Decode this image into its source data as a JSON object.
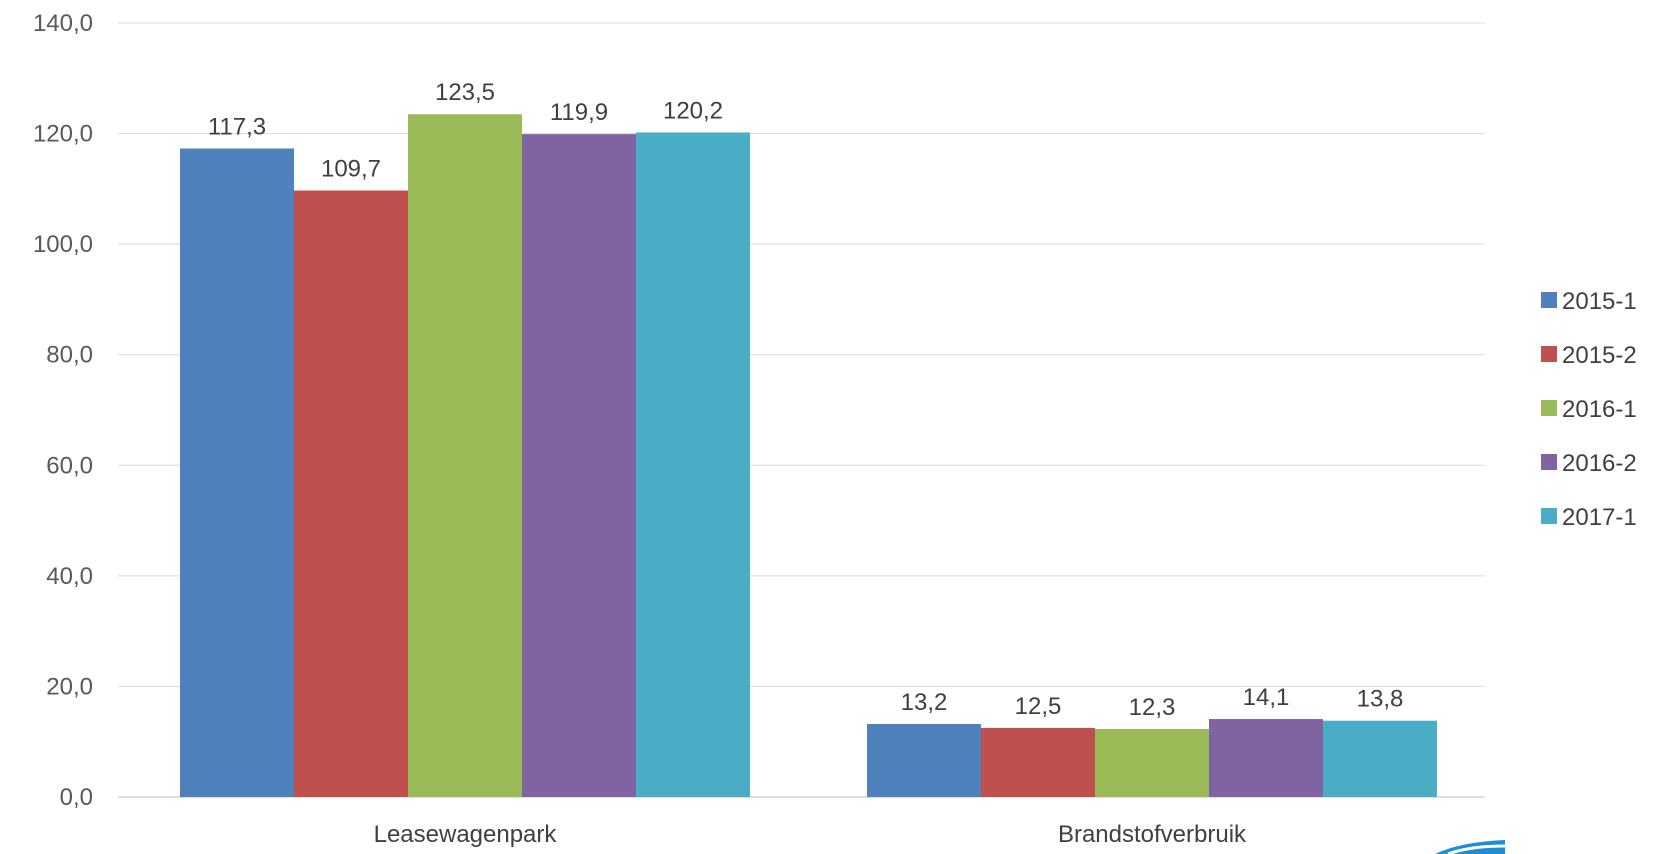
{
  "chart_data": {
    "type": "bar",
    "categories": [
      "Leasewagenpark",
      "Brandstofverbruik"
    ],
    "series": [
      {
        "name": "2015-1",
        "color": "#4F81BD",
        "values": [
          117.3,
          13.2
        ],
        "labels": [
          "117,3",
          "13,2"
        ]
      },
      {
        "name": "2015-2",
        "color": "#C0504D",
        "values": [
          109.7,
          12.5
        ],
        "labels": [
          "109,7",
          "12,5"
        ]
      },
      {
        "name": "2016-1",
        "color": "#9BBB59",
        "values": [
          123.5,
          12.3
        ],
        "labels": [
          "123,5",
          "12,3"
        ]
      },
      {
        "name": "2016-2",
        "color": "#8064A2",
        "values": [
          119.9,
          14.1
        ],
        "labels": [
          "119,9",
          "14,1"
        ]
      },
      {
        "name": "2017-1",
        "color": "#4BACC6",
        "values": [
          120.2,
          13.8
        ],
        "labels": [
          "120,2",
          "13,8"
        ]
      }
    ],
    "ylim": [
      0,
      140
    ],
    "yticks": [
      0,
      20,
      40,
      60,
      80,
      100,
      120,
      140
    ],
    "ytick_labels": [
      "0,0",
      "20,0",
      "40,0",
      "60,0",
      "80,0",
      "100,0",
      "120,0",
      "140,0"
    ],
    "title": "",
    "xlabel": "",
    "ylabel": "",
    "grid": true,
    "legend_position": "right"
  }
}
